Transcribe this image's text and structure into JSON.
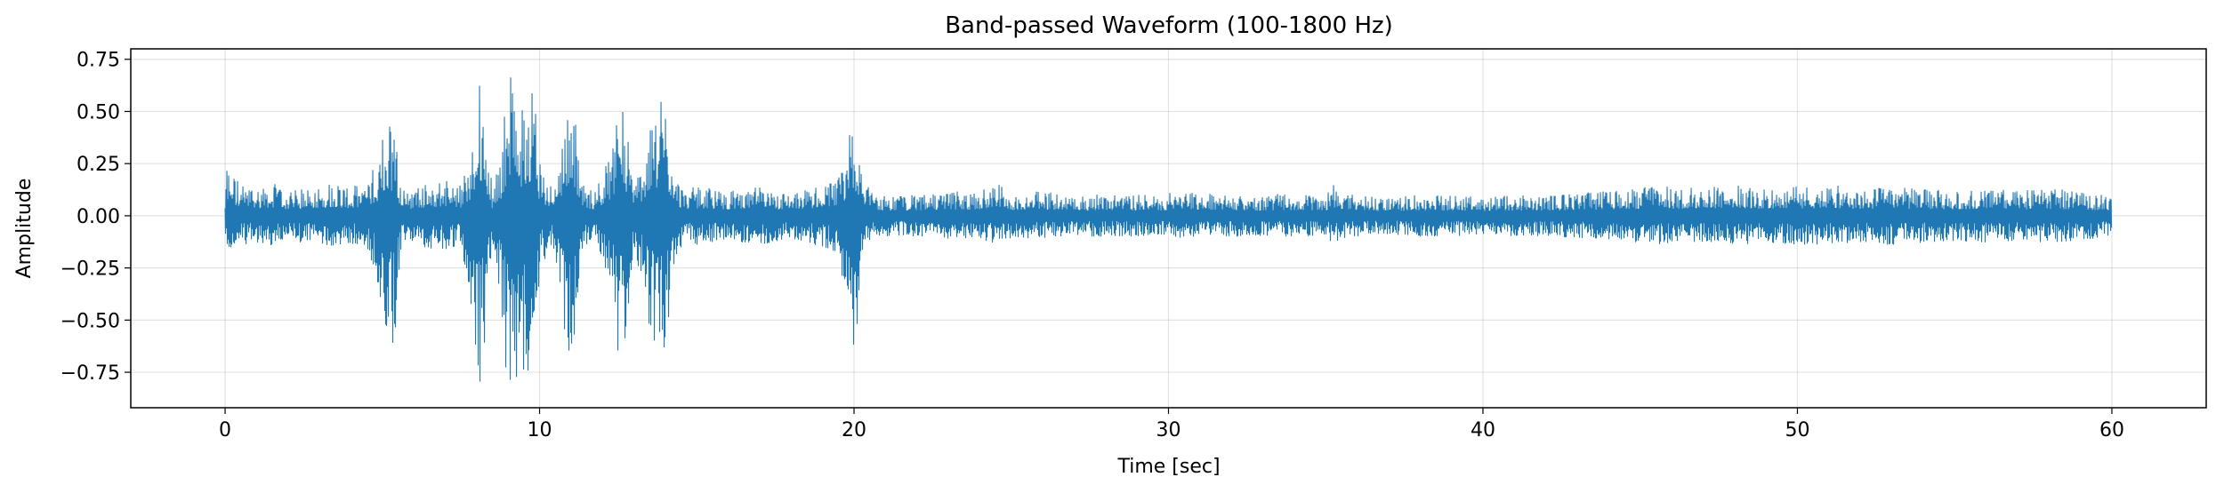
{
  "chart_data": {
    "type": "line",
    "title": "Band-passed Waveform (100-1800 Hz)",
    "xlabel": "Time [sec]",
    "ylabel": "Amplitude",
    "xlim": [
      -3,
      63
    ],
    "ylim": [
      -0.92,
      0.8
    ],
    "x_ticks": [
      0,
      10,
      20,
      30,
      40,
      50,
      60
    ],
    "x_tick_labels": [
      "0",
      "10",
      "20",
      "30",
      "40",
      "50",
      "60"
    ],
    "y_ticks": [
      0.75,
      0.5,
      0.25,
      0.0,
      -0.25,
      -0.5,
      -0.75
    ],
    "y_tick_labels": [
      "0.75",
      "0.50",
      "0.25",
      "0.00",
      "−0.25",
      "−0.50",
      "−0.75"
    ],
    "grid": true,
    "line_color": "#1f77b4",
    "series": [
      {
        "x": [
          0.0,
          0.05,
          0.5,
          1.0,
          1.5,
          2.0,
          2.5,
          3.0,
          3.5,
          4.0,
          4.5,
          4.9,
          5.0,
          5.1,
          5.2,
          5.4,
          5.6,
          5.8,
          6.0,
          6.5,
          7.0,
          7.5,
          7.8,
          8.0,
          8.1,
          8.2,
          8.3,
          8.5,
          8.8,
          9.0,
          9.2,
          9.4,
          9.6,
          9.8,
          10.0,
          10.3,
          10.6,
          10.9,
          11.0,
          11.1,
          11.2,
          11.4,
          11.7,
          12.0,
          12.3,
          12.5,
          12.6,
          12.8,
          13.0,
          13.4,
          13.7,
          13.9,
          14.0,
          14.1,
          14.3,
          14.6,
          15.0,
          16.0,
          17.0,
          18.0,
          19.0,
          19.5,
          19.8,
          19.9,
          20.0,
          20.1,
          20.3,
          20.6,
          21.0,
          22.0,
          23.0,
          24.0,
          24.4,
          25.0,
          26.0,
          27.0,
          28.0,
          29.0,
          30.0,
          30.2,
          31.0,
          32.0,
          33.0,
          34.0,
          35.0,
          35.2,
          36.0,
          37.0,
          38.0,
          39.0,
          40.0,
          41.0,
          42.0,
          43.0,
          44.0,
          45.0,
          45.5,
          46.0,
          47.0,
          48.0,
          49.0,
          49.5,
          50.0,
          51.0,
          52.0,
          53.0,
          54.0,
          55.0,
          56.0,
          57.0,
          58.0,
          59.0,
          60.0
        ],
        "y_max": [
          0.1,
          0.27,
          0.15,
          0.14,
          0.16,
          0.12,
          0.13,
          0.15,
          0.17,
          0.14,
          0.16,
          0.3,
          0.45,
          0.35,
          0.48,
          0.44,
          0.15,
          0.12,
          0.14,
          0.16,
          0.18,
          0.15,
          0.3,
          0.6,
          0.66,
          0.55,
          0.45,
          0.12,
          0.35,
          0.73,
          0.6,
          0.5,
          0.62,
          0.69,
          0.3,
          0.14,
          0.25,
          0.57,
          0.55,
          0.5,
          0.4,
          0.15,
          0.12,
          0.2,
          0.35,
          0.55,
          0.57,
          0.4,
          0.15,
          0.35,
          0.5,
          0.59,
          0.55,
          0.45,
          0.2,
          0.13,
          0.14,
          0.12,
          0.14,
          0.11,
          0.15,
          0.18,
          0.35,
          0.5,
          0.5,
          0.45,
          0.18,
          0.1,
          0.1,
          0.1,
          0.12,
          0.11,
          0.17,
          0.11,
          0.12,
          0.1,
          0.11,
          0.1,
          0.1,
          0.15,
          0.11,
          0.1,
          0.1,
          0.11,
          0.1,
          0.15,
          0.1,
          0.09,
          0.1,
          0.1,
          0.09,
          0.1,
          0.1,
          0.11,
          0.12,
          0.13,
          0.17,
          0.13,
          0.14,
          0.15,
          0.13,
          0.15,
          0.14,
          0.15,
          0.13,
          0.14,
          0.13,
          0.12,
          0.14,
          0.12,
          0.13,
          0.12,
          0.1
        ],
        "y_min": [
          -0.1,
          -0.17,
          -0.14,
          -0.13,
          -0.15,
          -0.12,
          -0.13,
          -0.14,
          -0.15,
          -0.14,
          -0.15,
          -0.35,
          -0.55,
          -0.8,
          -0.68,
          -0.65,
          -0.15,
          -0.12,
          -0.13,
          -0.16,
          -0.17,
          -0.15,
          -0.4,
          -0.72,
          -0.83,
          -0.75,
          -0.5,
          -0.12,
          -0.5,
          -0.92,
          -0.82,
          -0.72,
          -0.77,
          -0.6,
          -0.3,
          -0.14,
          -0.25,
          -0.72,
          -0.68,
          -0.6,
          -0.45,
          -0.15,
          -0.12,
          -0.2,
          -0.4,
          -0.75,
          -0.73,
          -0.5,
          -0.15,
          -0.45,
          -0.72,
          -0.77,
          -0.74,
          -0.6,
          -0.2,
          -0.13,
          -0.14,
          -0.12,
          -0.14,
          -0.11,
          -0.15,
          -0.18,
          -0.45,
          -0.67,
          -0.62,
          -0.55,
          -0.18,
          -0.1,
          -0.1,
          -0.1,
          -0.11,
          -0.11,
          -0.13,
          -0.11,
          -0.11,
          -0.1,
          -0.1,
          -0.1,
          -0.1,
          -0.12,
          -0.1,
          -0.1,
          -0.1,
          -0.1,
          -0.1,
          -0.13,
          -0.1,
          -0.09,
          -0.1,
          -0.1,
          -0.09,
          -0.1,
          -0.1,
          -0.11,
          -0.12,
          -0.13,
          -0.14,
          -0.13,
          -0.13,
          -0.14,
          -0.13,
          -0.14,
          -0.14,
          -0.14,
          -0.13,
          -0.14,
          -0.13,
          -0.12,
          -0.13,
          -0.12,
          -0.13,
          -0.12,
          -0.1
        ]
      }
    ]
  }
}
